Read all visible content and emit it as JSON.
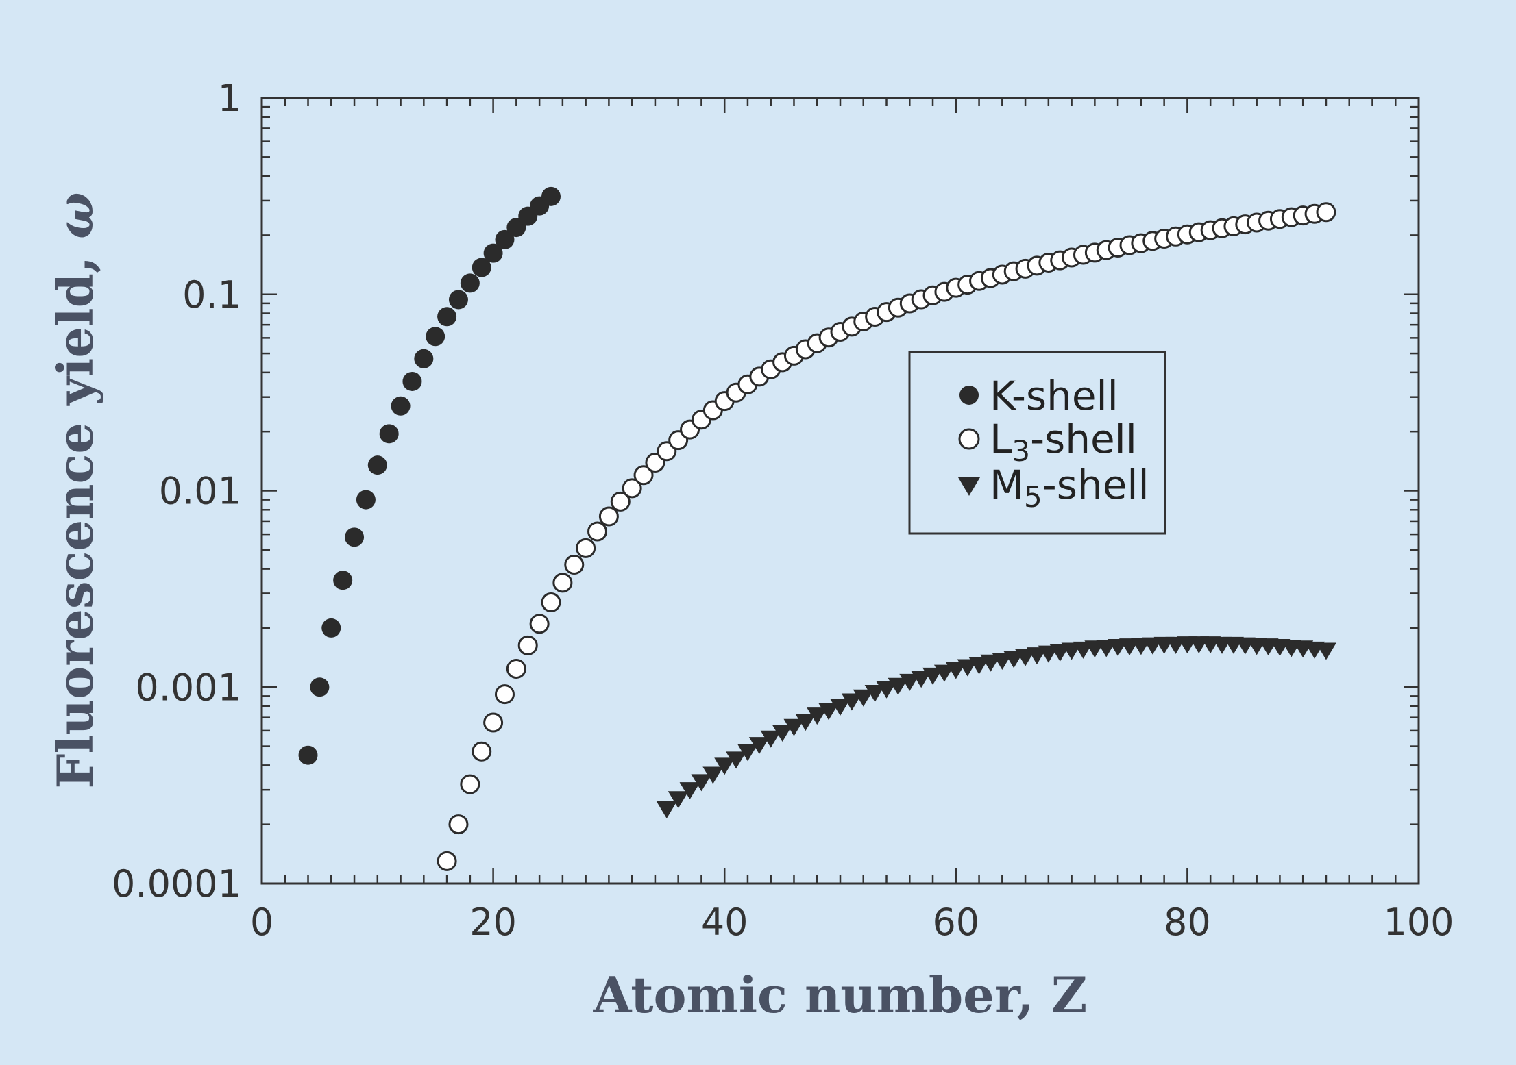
{
  "chart_data": {
    "type": "scatter",
    "title": "",
    "xlabel": "Atomic number, Z",
    "ylabel_main": "Fluorescence yield, ",
    "ylabel_symbol": "ω",
    "xlim": [
      0,
      100
    ],
    "ylim": [
      0.0001,
      1
    ],
    "yscale": "log",
    "grid": false,
    "legend_position": "center-right",
    "x_ticks": [
      0,
      20,
      40,
      60,
      80,
      100
    ],
    "x_tick_labels": [
      "0",
      "20",
      "40",
      "60",
      "80",
      "100"
    ],
    "y_ticks": [
      0.0001,
      0.001,
      0.01,
      0.1,
      1
    ],
    "y_tick_labels": [
      "0.0001",
      "0.001",
      "0.01",
      "0.1",
      "1"
    ],
    "colors": {
      "filled_marker": "#2b2b2b",
      "open_marker_fill": "#ffffff",
      "open_marker_edge": "#2b2b2b",
      "axis": "#333333"
    },
    "series": [
      {
        "name": "K-shell",
        "name_base": "K-shell",
        "name_sub": "",
        "name_suffix": "",
        "marker": "filled-circle",
        "x": [
          4,
          5,
          6,
          7,
          8,
          9,
          10,
          11,
          12,
          13,
          14,
          15,
          16,
          17,
          18,
          19,
          20,
          21,
          22,
          23,
          24,
          25
        ],
        "y": [
          0.00045,
          0.001,
          0.002,
          0.0035,
          0.0058,
          0.009,
          0.0135,
          0.0195,
          0.027,
          0.036,
          0.047,
          0.061,
          0.077,
          0.094,
          0.114,
          0.137,
          0.162,
          0.19,
          0.219,
          0.25,
          0.282,
          0.315
        ]
      },
      {
        "name": "L3-shell",
        "name_base": "L",
        "name_sub": "3",
        "name_suffix": "-shell",
        "marker": "open-circle",
        "x": [
          16,
          17,
          18,
          19,
          20,
          21,
          22,
          23,
          24,
          25,
          26,
          27,
          28,
          29,
          30,
          31,
          32,
          33,
          34,
          35,
          36,
          37,
          38,
          39,
          40,
          41,
          42,
          43,
          44,
          45,
          46,
          47,
          48,
          49,
          50,
          51,
          52,
          53,
          54,
          55,
          56,
          57,
          58,
          59,
          60,
          61,
          62,
          63,
          64,
          65,
          66,
          67,
          68,
          69,
          70,
          71,
          72,
          73,
          74,
          75,
          76,
          77,
          78,
          79,
          80,
          81,
          82,
          83,
          84,
          85,
          86,
          87,
          88,
          89,
          90,
          91,
          92
        ],
        "y": [
          0.00013,
          0.0002,
          0.00032,
          0.00047,
          0.00066,
          0.00092,
          0.00124,
          0.00163,
          0.0021,
          0.0027,
          0.0034,
          0.0042,
          0.0051,
          0.0062,
          0.0074,
          0.0088,
          0.0103,
          0.012,
          0.0139,
          0.0159,
          0.0181,
          0.0205,
          0.023,
          0.0257,
          0.0286,
          0.0316,
          0.0348,
          0.0381,
          0.0415,
          0.0451,
          0.0487,
          0.0525,
          0.0564,
          0.0603,
          0.0644,
          0.0685,
          0.0727,
          0.0769,
          0.0812,
          0.0855,
          0.0899,
          0.0943,
          0.0988,
          0.103,
          0.108,
          0.112,
          0.117,
          0.121,
          0.126,
          0.131,
          0.135,
          0.14,
          0.145,
          0.149,
          0.154,
          0.159,
          0.163,
          0.168,
          0.173,
          0.178,
          0.182,
          0.187,
          0.192,
          0.197,
          0.202,
          0.207,
          0.212,
          0.217,
          0.222,
          0.227,
          0.232,
          0.237,
          0.242,
          0.247,
          0.252,
          0.257,
          0.262
        ]
      },
      {
        "name": "M5-shell",
        "name_base": "M",
        "name_sub": "5",
        "name_suffix": "-shell",
        "marker": "filled-triangle-down",
        "x": [
          35,
          36,
          37,
          38,
          39,
          40,
          41,
          42,
          43,
          44,
          45,
          46,
          47,
          48,
          49,
          50,
          51,
          52,
          53,
          54,
          55,
          56,
          57,
          58,
          59,
          60,
          61,
          62,
          63,
          64,
          65,
          66,
          67,
          68,
          69,
          70,
          71,
          72,
          73,
          74,
          75,
          76,
          77,
          78,
          79,
          80,
          81,
          82,
          83,
          84,
          85,
          86,
          87,
          88,
          89,
          90,
          91,
          92
        ],
        "y": [
          0.00024,
          0.00027,
          0.0003,
          0.00033,
          0.00036,
          0.0004,
          0.00043,
          0.00047,
          0.00051,
          0.00055,
          0.00059,
          0.00063,
          0.00067,
          0.00072,
          0.00076,
          0.0008,
          0.00085,
          0.00089,
          0.00094,
          0.00098,
          0.00102,
          0.00107,
          0.00111,
          0.00115,
          0.00119,
          0.00123,
          0.00127,
          0.0013,
          0.00134,
          0.00137,
          0.0014,
          0.00143,
          0.00146,
          0.00149,
          0.00151,
          0.00154,
          0.00156,
          0.00158,
          0.00159,
          0.00161,
          0.00162,
          0.00163,
          0.00164,
          0.00165,
          0.00165,
          0.00166,
          0.00166,
          0.00166,
          0.00165,
          0.00165,
          0.00164,
          0.00163,
          0.00162,
          0.00161,
          0.00159,
          0.00158,
          0.00156,
          0.00154
        ]
      }
    ]
  }
}
